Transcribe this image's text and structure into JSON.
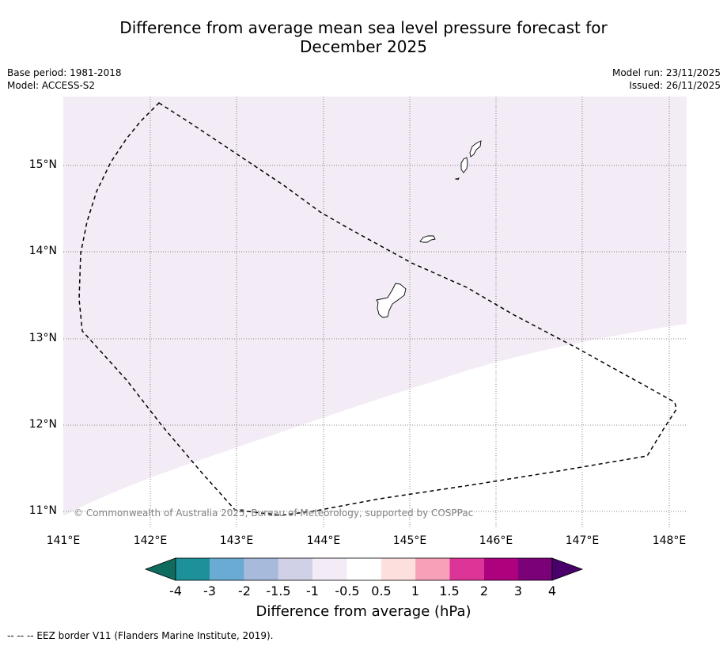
{
  "header": {
    "title_line1": "Difference from average mean sea level pressure forecast for",
    "title_line2": "December 2025",
    "base_period": "Base period: 1981-2018",
    "model": "Model: ACCESS-S2",
    "model_run": "Model run: 23/11/2025",
    "issued": "Issued: 26/11/2025"
  },
  "map": {
    "lon_labels": [
      "141°E",
      "142°E",
      "143°E",
      "144°E",
      "145°E",
      "146°E",
      "147°E",
      "148°E"
    ],
    "lat_labels": [
      "15°N",
      "14°N",
      "13°N",
      "12°N",
      "11°N"
    ],
    "credit": "© Commonwealth of Australia 2025, Bureau of Meteorology, supported by COSPPac",
    "fill_colors": {
      "band_neg_1_to_neg_0_5": "#f3ebf5",
      "band_neg_0_5_to_0_5": "#ffffff"
    },
    "land_color": "#ffffff",
    "eez_line_color": "#000000"
  },
  "colorbar": {
    "title": "Difference from average (hPa)",
    "tick_labels": [
      "-4",
      "-3",
      "-2",
      "-1.5",
      "-1",
      "-0.5",
      "0.5",
      "1",
      "1.5",
      "2",
      "3",
      "4"
    ],
    "colors": [
      "#0f6b5e",
      "#1d9199",
      "#6aabd3",
      "#a8badb",
      "#d0d1e6",
      "#f3ebf5",
      "#ffffff",
      "#fde0dd",
      "#f8a0b8",
      "#dd3497",
      "#ae017e",
      "#7a0177",
      "#49006a"
    ]
  },
  "footnote": "--  --  -- EEZ border V11 (Flanders Marine Institute, 2019)."
}
